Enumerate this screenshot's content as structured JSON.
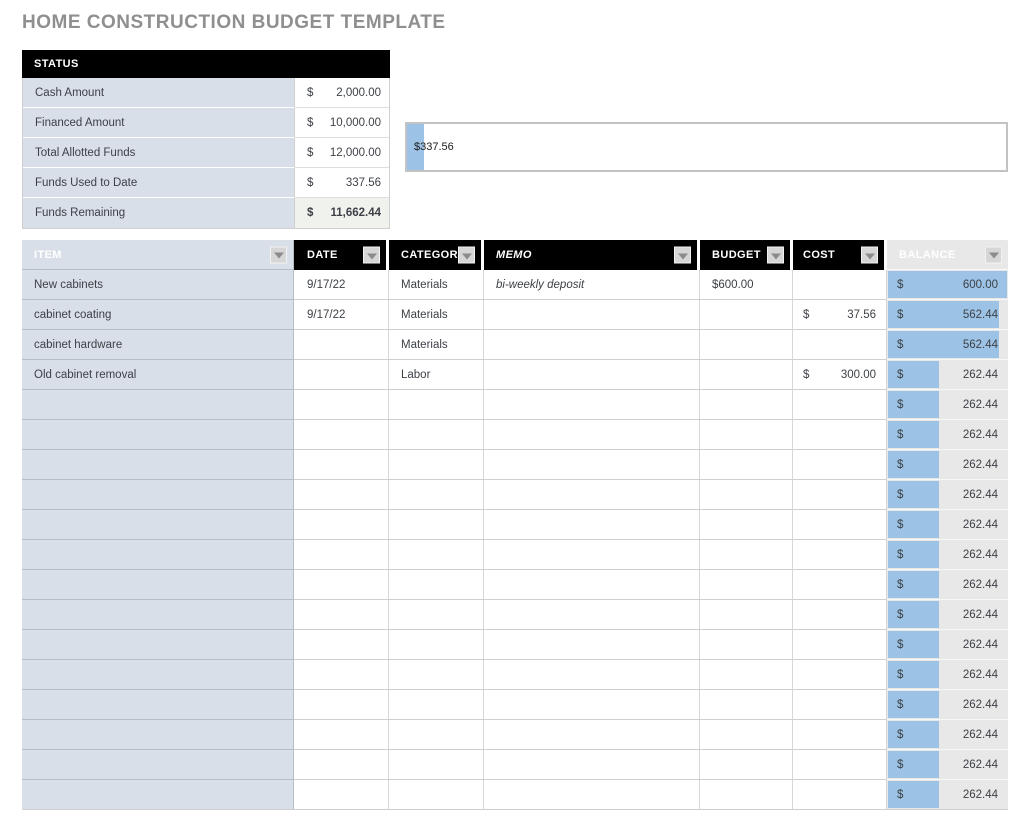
{
  "title": "HOME CONSTRUCTION BUDGET TEMPLATE",
  "status": {
    "header": "STATUS",
    "rows": [
      {
        "label": "Cash Amount",
        "currency": "$",
        "value": "2,000.00"
      },
      {
        "label": "Financed Amount",
        "currency": "$",
        "value": "10,000.00"
      },
      {
        "label": "Total Allotted Funds",
        "currency": "$",
        "value": "12,000.00"
      },
      {
        "label": "Funds Used to Date",
        "currency": "$",
        "value": "337.56"
      },
      {
        "label": "Funds Remaining",
        "currency": "$",
        "value": "11,662.44"
      }
    ]
  },
  "funds_used_bar": {
    "label": "$337.56",
    "value": 337.56,
    "max": 12000,
    "percent": 2.8,
    "fill_color": "#9cc3e5"
  },
  "table": {
    "columns": [
      "ITEM",
      "DATE",
      "CATEGORY",
      "MEMO",
      "BUDGET",
      "COST",
      "BALANCE"
    ],
    "balance_bar_color": "#9cc3e5",
    "rows": [
      {
        "item": "New cabinets",
        "date": "9/17/22",
        "category": "Materials",
        "memo": "bi-weekly deposit",
        "budget": "$600.00",
        "cost_currency": "",
        "cost": "",
        "balance_currency": "$",
        "balance": "600.00",
        "bar_percent": 100
      },
      {
        "item": "cabinet coating",
        "date": "9/17/22",
        "category": "Materials",
        "memo": "",
        "budget": "",
        "cost_currency": "$",
        "cost": "37.56",
        "balance_currency": "$",
        "balance": "562.44",
        "bar_percent": 93.7
      },
      {
        "item": "cabinet hardware",
        "date": "",
        "category": "Materials",
        "memo": "",
        "budget": "",
        "cost_currency": "",
        "cost": "",
        "balance_currency": "$",
        "balance": "562.44",
        "bar_percent": 93.7
      },
      {
        "item": "Old cabinet removal",
        "date": "",
        "category": "Labor",
        "memo": "",
        "budget": "",
        "cost_currency": "$",
        "cost": "300.00",
        "balance_currency": "$",
        "balance": "262.44",
        "bar_percent": 43.7
      },
      {
        "item": "",
        "date": "",
        "category": "",
        "memo": "",
        "budget": "",
        "cost_currency": "",
        "cost": "",
        "balance_currency": "$",
        "balance": "262.44",
        "bar_percent": 43.7
      },
      {
        "item": "",
        "date": "",
        "category": "",
        "memo": "",
        "budget": "",
        "cost_currency": "",
        "cost": "",
        "balance_currency": "$",
        "balance": "262.44",
        "bar_percent": 43.7
      },
      {
        "item": "",
        "date": "",
        "category": "",
        "memo": "",
        "budget": "",
        "cost_currency": "",
        "cost": "",
        "balance_currency": "$",
        "balance": "262.44",
        "bar_percent": 43.7
      },
      {
        "item": "",
        "date": "",
        "category": "",
        "memo": "",
        "budget": "",
        "cost_currency": "",
        "cost": "",
        "balance_currency": "$",
        "balance": "262.44",
        "bar_percent": 43.7
      },
      {
        "item": "",
        "date": "",
        "category": "",
        "memo": "",
        "budget": "",
        "cost_currency": "",
        "cost": "",
        "balance_currency": "$",
        "balance": "262.44",
        "bar_percent": 43.7
      },
      {
        "item": "",
        "date": "",
        "category": "",
        "memo": "",
        "budget": "",
        "cost_currency": "",
        "cost": "",
        "balance_currency": "$",
        "balance": "262.44",
        "bar_percent": 43.7
      },
      {
        "item": "",
        "date": "",
        "category": "",
        "memo": "",
        "budget": "",
        "cost_currency": "",
        "cost": "",
        "balance_currency": "$",
        "balance": "262.44",
        "bar_percent": 43.7
      },
      {
        "item": "",
        "date": "",
        "category": "",
        "memo": "",
        "budget": "",
        "cost_currency": "",
        "cost": "",
        "balance_currency": "$",
        "balance": "262.44",
        "bar_percent": 43.7
      },
      {
        "item": "",
        "date": "",
        "category": "",
        "memo": "",
        "budget": "",
        "cost_currency": "",
        "cost": "",
        "balance_currency": "$",
        "balance": "262.44",
        "bar_percent": 43.7
      },
      {
        "item": "",
        "date": "",
        "category": "",
        "memo": "",
        "budget": "",
        "cost_currency": "",
        "cost": "",
        "balance_currency": "$",
        "balance": "262.44",
        "bar_percent": 43.7
      },
      {
        "item": "",
        "date": "",
        "category": "",
        "memo": "",
        "budget": "",
        "cost_currency": "",
        "cost": "",
        "balance_currency": "$",
        "balance": "262.44",
        "bar_percent": 43.7
      },
      {
        "item": "",
        "date": "",
        "category": "",
        "memo": "",
        "budget": "",
        "cost_currency": "",
        "cost": "",
        "balance_currency": "$",
        "balance": "262.44",
        "bar_percent": 43.7
      },
      {
        "item": "",
        "date": "",
        "category": "",
        "memo": "",
        "budget": "",
        "cost_currency": "",
        "cost": "",
        "balance_currency": "$",
        "balance": "262.44",
        "bar_percent": 43.7
      },
      {
        "item": "",
        "date": "",
        "category": "",
        "memo": "",
        "budget": "",
        "cost_currency": "",
        "cost": "",
        "balance_currency": "$",
        "balance": "262.44",
        "bar_percent": 43.7
      }
    ]
  },
  "colors": {
    "title_gray": "#8f8f8f",
    "header_black": "#000000",
    "label_fill": "#d9dfe8",
    "remaining_fill": "#f0f2ed",
    "data_bar_blue": "#9cc3e5",
    "balance_cell_bg": "#e9e8e8"
  }
}
